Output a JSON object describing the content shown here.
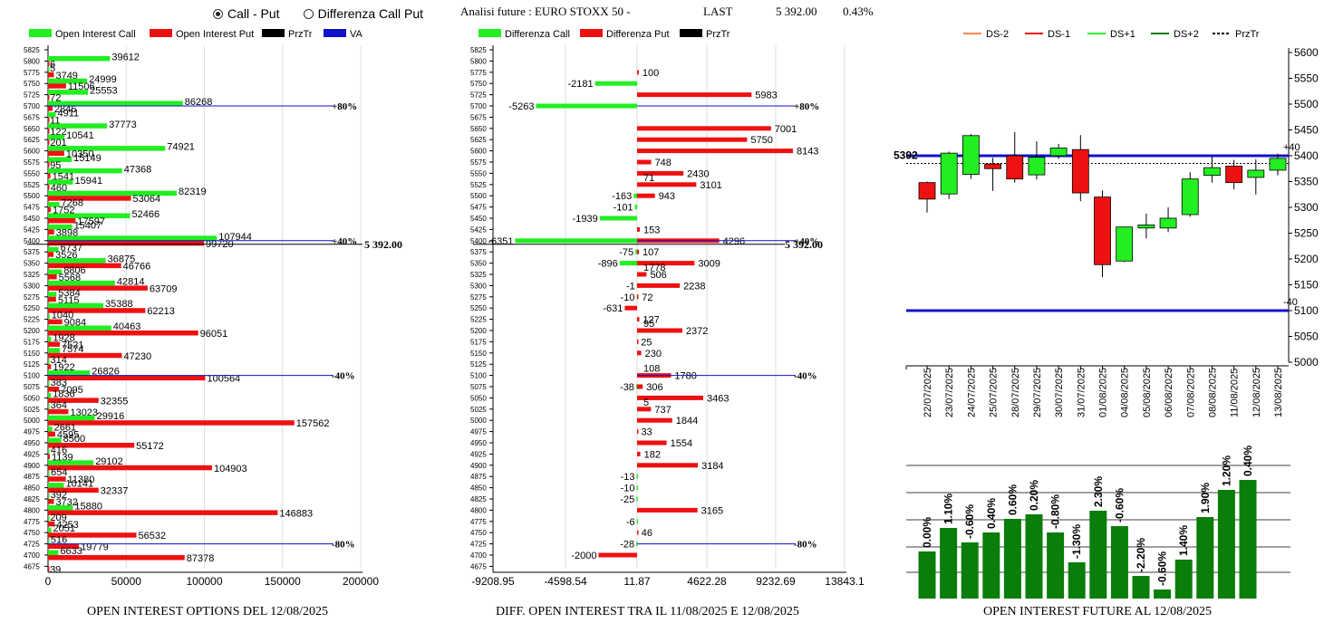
{
  "header": {
    "radio_call_put": "Call - Put",
    "radio_diff": "Differenza Call Put",
    "title": "Analisi future : EURO STOXX 50 -",
    "last_label": "LAST",
    "last_value": "5 392.00",
    "last_pct": "0.43%"
  },
  "colors": {
    "green": "#22ee22",
    "red": "#ee1111",
    "darkgreen": "#0a7d0a",
    "blue": "#1111cc",
    "black": "#000000"
  },
  "captions": {
    "left": "OPEN INTEREST OPTIONS DEL 12/08/2025",
    "middle": "DIFF. OPEN INTEREST TRA IL 11/08/2025 E 12/08/2025",
    "right": "OPEN INTEREST FUTURE AL 12/08/2025"
  },
  "chart_data": [
    {
      "type": "bar",
      "id": "oi-options",
      "legend": [
        "Open Interest Call",
        "Open Interest Put",
        "PrzTr",
        "VA"
      ],
      "strikes": [
        5825,
        5800,
        5775,
        5750,
        5725,
        5700,
        5675,
        5650,
        5625,
        5600,
        5575,
        5550,
        5525,
        5500,
        5475,
        5450,
        5425,
        5400,
        5375,
        5350,
        5325,
        5300,
        5275,
        5250,
        5225,
        5200,
        5175,
        5150,
        5125,
        5100,
        5075,
        5050,
        5025,
        5000,
        4975,
        4950,
        4925,
        4900,
        4875,
        4850,
        4825,
        4800,
        4775,
        4750,
        4725,
        4700,
        4675
      ],
      "call": [
        null,
        39612,
        5,
        24999,
        25553,
        86268,
        4911,
        37773,
        10541,
        74921,
        15149,
        47368,
        15941,
        82319,
        7268,
        52466,
        15407,
        107944,
        6737,
        36875,
        8806,
        42814,
        5384,
        35388,
        1040,
        40463,
        1928,
        7574,
        314,
        26826,
        383,
        1836,
        364,
        29916,
        2661,
        8500,
        416,
        29102,
        654,
        10141,
        392,
        15880,
        209,
        2051,
        516,
        6633,
        null
      ],
      "put": [
        null,
        6,
        3749,
        11506,
        72,
        2846,
        11,
        122,
        201,
        10350,
        95,
        1541,
        460,
        53064,
        1752,
        17597,
        3898,
        99720,
        3526,
        46766,
        5568,
        63709,
        5115,
        62213,
        9084,
        96051,
        7521,
        47230,
        1922,
        100564,
        7095,
        32355,
        13023,
        157562,
        4595,
        55172,
        1139,
        104903,
        11380,
        32337,
        3732,
        146883,
        4253,
        56532,
        19779,
        87378,
        39
      ],
      "xticks": [
        0,
        50000,
        100000,
        150000,
        200000
      ],
      "xlim": [
        0,
        200000
      ],
      "markers": [
        {
          "strike": 5700,
          "label": "+80%"
        },
        {
          "strike": 5400,
          "label": "+40%"
        },
        {
          "strike": 5100,
          "label": "-40%"
        },
        {
          "strike": 4725,
          "label": "-80%"
        }
      ],
      "przTr_label": "5 392.00"
    },
    {
      "type": "bar",
      "id": "diff-oi",
      "legend": [
        "Differenza Call",
        "Differenza Put",
        "PrzTr"
      ],
      "strikes": [
        5825,
        5800,
        5775,
        5750,
        5725,
        5700,
        5675,
        5650,
        5625,
        5600,
        5575,
        5550,
        5525,
        5500,
        5475,
        5450,
        5425,
        5400,
        5375,
        5350,
        5325,
        5300,
        5275,
        5250,
        5225,
        5200,
        5175,
        5150,
        5125,
        5100,
        5075,
        5050,
        5025,
        5000,
        4975,
        4950,
        4925,
        4900,
        4875,
        4850,
        4825,
        4800,
        4775,
        4750,
        4725,
        4700,
        4675
      ],
      "diff_call": [
        null,
        null,
        null,
        -2181,
        null,
        -5263,
        null,
        null,
        null,
        null,
        null,
        null,
        null,
        -163,
        -101,
        -1939,
        null,
        -6351,
        -75,
        -896,
        null,
        -1,
        -10,
        null,
        null,
        null,
        null,
        null,
        null,
        null,
        -38,
        null,
        null,
        null,
        null,
        null,
        null,
        null,
        -13,
        -10,
        -25,
        null,
        -6,
        null,
        -28,
        null,
        null
      ],
      "diff_call_labels": [
        "",
        "",
        "",
        "-2181",
        "",
        "-5263",
        "",
        "",
        "",
        "",
        "",
        "",
        "",
        "-163",
        "-101",
        "-1939",
        "",
        "-6351",
        "-75",
        "-896",
        "",
        "-1",
        "-10",
        "",
        "",
        "",
        "",
        "",
        "",
        "",
        "-38",
        "",
        "",
        "",
        "",
        "",
        "",
        "",
        "-13",
        "-10",
        "-25",
        "",
        "-6",
        "",
        "-28",
        "",
        ""
      ],
      "diff_put": [
        null,
        null,
        100,
        null,
        5983,
        null,
        null,
        7001,
        5750,
        8143,
        748,
        2430,
        3101,
        943,
        null,
        null,
        153,
        4296,
        107,
        3009,
        506,
        2238,
        72,
        -631,
        127,
        2372,
        25,
        230,
        null,
        1780,
        306,
        3463,
        737,
        1844,
        33,
        1554,
        182,
        3184,
        null,
        null,
        null,
        3165,
        null,
        46,
        null,
        -2000,
        null
      ],
      "diff_put_labels": [
        "",
        "",
        "100",
        "",
        "5983",
        "",
        "",
        "7001",
        "5750",
        "8143",
        "748",
        "2430",
        "3101",
        "943",
        "",
        "",
        "153",
        "4296",
        "107",
        "3009",
        "506",
        "2238",
        "72",
        "-631",
        "127",
        "2372",
        "25",
        "230",
        "",
        "1780",
        "306",
        "3463",
        "737",
        "1844",
        "33",
        "1554",
        "182",
        "3184",
        "",
        "",
        "",
        "3165",
        "",
        "46",
        "",
        "-2000",
        ""
      ],
      "extra_labels": [
        {
          "strike": 5525,
          "text": "71"
        },
        {
          "strike": 5325,
          "text": "1778"
        },
        {
          "strike": 5200,
          "text": "95"
        },
        {
          "strike": 5100,
          "text": "108"
        },
        {
          "strike": 5025,
          "text": "5"
        }
      ],
      "xticks": [
        "-9208.95",
        "-4598.54",
        "11.87",
        "4622.28",
        "9232.69",
        "13843.1"
      ],
      "xlim": [
        -9208.95,
        13843.1
      ],
      "markers": [
        {
          "strike": 5700,
          "label": "+80%"
        },
        {
          "strike": 5400,
          "label": "+40%"
        },
        {
          "strike": 5100,
          "label": "-40%"
        },
        {
          "strike": 4725,
          "label": "-80%"
        }
      ],
      "przTr_label": "5 392.00"
    },
    {
      "type": "candlestick",
      "id": "future-candles",
      "legend": [
        "DS-2",
        "DS-1",
        "DS+1",
        "DS+2",
        "PrzTr"
      ],
      "dates": [
        "22/07/2025",
        "23/07/2025",
        "24/07/2025",
        "25/07/2025",
        "28/07/2025",
        "29/07/2025",
        "30/07/2025",
        "31/07/2025",
        "01/08/2025",
        "04/08/2025",
        "05/08/2025",
        "06/08/2025",
        "07/08/2025",
        "08/08/2025",
        "11/08/2025",
        "12/08/2025",
        "13/08/2025"
      ],
      "open": [
        5348,
        5326,
        5364,
        5384,
        5400,
        5363,
        5400,
        5412,
        5320,
        5196,
        5260,
        5260,
        5286,
        5362,
        5380,
        5358,
        5372
      ],
      "close": [
        5316,
        5405,
        5439,
        5375,
        5355,
        5397,
        5415,
        5328,
        5189,
        5262,
        5266,
        5279,
        5355,
        5377,
        5348,
        5372,
        5395
      ],
      "high": [
        5350,
        5408,
        5442,
        5396,
        5446,
        5428,
        5423,
        5440,
        5333,
        5262,
        5288,
        5300,
        5368,
        5398,
        5392,
        5393,
        5404
      ],
      "low": [
        5290,
        5316,
        5355,
        5332,
        5348,
        5354,
        5394,
        5312,
        5165,
        5194,
        5240,
        5252,
        5282,
        5348,
        5335,
        5325,
        5362
      ],
      "ylim": [
        5000,
        5600
      ],
      "yticks": [
        5000,
        5050,
        5100,
        5150,
        5200,
        5250,
        5300,
        5350,
        5400,
        5450,
        5500,
        5550,
        5600
      ],
      "levels": [
        {
          "value": 5400,
          "label": "+40"
        },
        {
          "value": 5100,
          "label": "-40"
        }
      ],
      "przTr": 5392,
      "przTr_label": "5392"
    },
    {
      "type": "bar",
      "id": "future-oi",
      "categories": [
        "22/07/2025",
        "23/07/2025",
        "24/07/2025",
        "25/07/2025",
        "28/07/2025",
        "29/07/2025",
        "30/07/2025",
        "31/07/2025",
        "01/08/2025",
        "04/08/2025",
        "05/08/2025",
        "06/08/2025",
        "07/08/2025",
        "08/08/2025",
        "11/08/2025",
        "12/08/2025",
        "13/08/2025"
      ],
      "values": [
        52,
        78,
        62,
        73,
        88,
        93,
        73,
        40,
        97,
        80,
        25,
        10,
        43,
        90,
        120,
        131,
        null
      ],
      "labels": [
        "0.00%",
        "1.10%",
        "-0.60%",
        "0.40%",
        "0.60%",
        "0.20%",
        "-0.80%",
        "-1.30%",
        "2.30%",
        "-0.60%",
        "-2.20%",
        "-0.60%",
        "1.40%",
        "1.90%",
        "1.20%",
        "0.40%"
      ]
    }
  ]
}
